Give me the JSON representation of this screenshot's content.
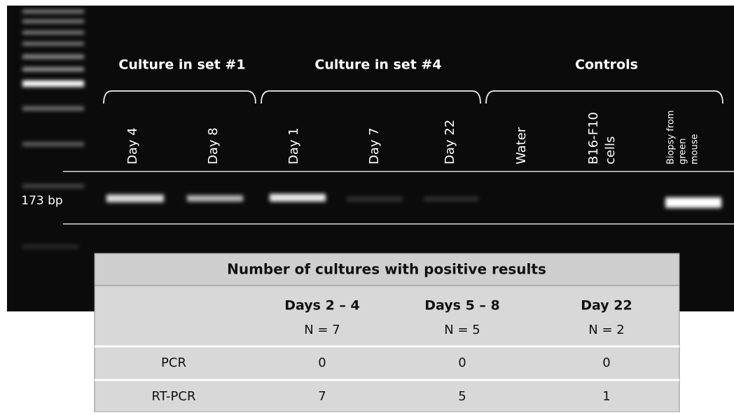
{
  "gel": {
    "groups": [
      "Culture in set #1",
      "Culture in set #4",
      "Controls"
    ],
    "lanes": [
      [
        "Day 4"
      ],
      [
        "Day 8"
      ],
      [
        "Day 1"
      ],
      [
        "Day 7"
      ],
      [
        "Day 22"
      ],
      [
        "Water"
      ],
      [
        "B16-F10",
        "cells"
      ],
      [
        "Biopsy from",
        "green",
        "mouse"
      ]
    ],
    "band_label": "173 bp"
  },
  "table": {
    "title": "Number of cultures with positive results",
    "columns": [
      {
        "name": "Days 2 – 4",
        "n": "N = 7"
      },
      {
        "name": "Days 5 – 8",
        "n": "N = 5"
      },
      {
        "name": "Day 22",
        "n": "N = 2"
      }
    ],
    "rows": [
      [
        "PCR",
        0,
        0,
        0
      ],
      [
        "RT-PCR",
        7,
        5,
        1
      ]
    ]
  }
}
